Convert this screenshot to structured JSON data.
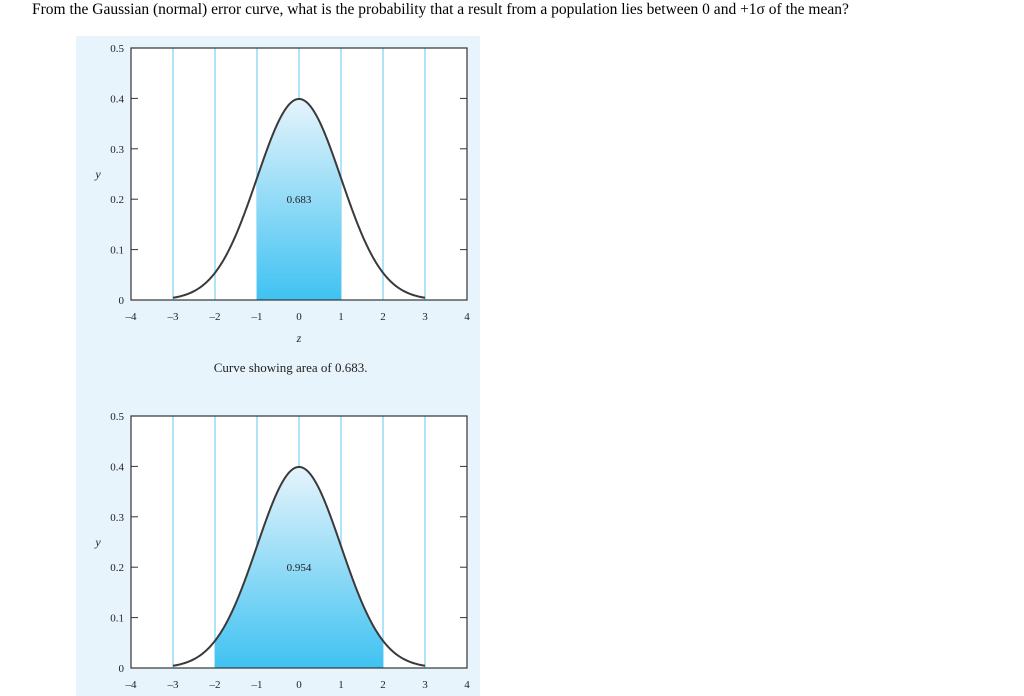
{
  "question": "From the Gaussian (normal) error curve, what is the probability that a result from a population lies between 0 and +1σ of the mean?",
  "chart_data": [
    {
      "type": "area",
      "xlabel": "z",
      "ylabel": "y",
      "xlim": [
        -4,
        4
      ],
      "ylim": [
        0,
        0.5
      ],
      "x_ticks": [
        "-4",
        "-3",
        "-2",
        "-1",
        "0",
        "1",
        "2",
        "3",
        "4"
      ],
      "y_ticks": [
        "0",
        "0.1",
        "0.2",
        "0.3",
        "0.4",
        "0.5"
      ],
      "vertical_gridlines": [
        -3,
        -2,
        -1,
        0,
        1,
        2,
        3
      ],
      "shaded_range": [
        -1,
        1
      ],
      "area_label": "0.683",
      "caption": "Curve showing area of 0.683.",
      "grid": true,
      "curve_color": "#3a3a3a",
      "fill_top_color": "#e6f4fc",
      "fill_bottom_color": "#3fc2f2"
    },
    {
      "type": "area",
      "xlabel": "",
      "ylabel": "y",
      "xlim": [
        -4,
        4
      ],
      "ylim": [
        0,
        0.5
      ],
      "x_ticks": [
        "-4",
        "-3",
        "-2",
        "-1",
        "0",
        "1",
        "2",
        "3",
        "4"
      ],
      "y_ticks": [
        "0",
        "0.1",
        "0.2",
        "0.3",
        "0.4",
        "0.5"
      ],
      "vertical_gridlines": [
        -3,
        -2,
        -1,
        0,
        1,
        2,
        3
      ],
      "shaded_range": [
        -2,
        2
      ],
      "area_label": "0.954",
      "caption": "",
      "grid": true,
      "curve_color": "#3a3a3a",
      "fill_top_color": "#e6f4fc",
      "fill_bottom_color": "#3fc2f2"
    }
  ]
}
